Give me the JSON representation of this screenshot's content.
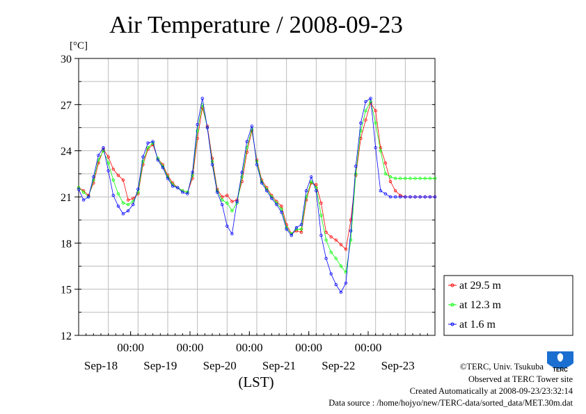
{
  "chart_data": {
    "type": "line",
    "title": "Air Temperature / 2008-09-23",
    "ylabel": "[°C]",
    "xlabel": "(LST)",
    "ylim": [
      12,
      30
    ],
    "xlim": [
      0,
      144
    ],
    "yticks": [
      "12",
      "15",
      "18",
      "21",
      "24",
      "27",
      "30"
    ],
    "xticks_time": [
      "00:00",
      "00:00",
      "00:00",
      "00:00",
      "00:00"
    ],
    "xticks_date": [
      "Sep-18",
      "Sep-19",
      "Sep-20",
      "Sep-21",
      "Sep-22",
      "Sep-23"
    ],
    "grid": true,
    "legend_position": "bottom-right, outside plot",
    "x_note": "x is hours elapsed in the plotted 6-day window (LST)",
    "series": [
      {
        "name": "at 29.5 m",
        "color": "#ff0000",
        "x": [
          0,
          2,
          4,
          6,
          8,
          10,
          12,
          14,
          16,
          18,
          20,
          22,
          24,
          26,
          28,
          30,
          32,
          34,
          36,
          38,
          40,
          42,
          44,
          46,
          48,
          50,
          52,
          54,
          56,
          58,
          60,
          62,
          64,
          66,
          68,
          70,
          72,
          74,
          76,
          78,
          80,
          82,
          84,
          86,
          88,
          90,
          92,
          94,
          96,
          98,
          100,
          102,
          104,
          106,
          108,
          110,
          112,
          114,
          116,
          118,
          120,
          122,
          124,
          126,
          128,
          130,
          132,
          134,
          136,
          138,
          140,
          142,
          144
        ],
        "values": [
          21.6,
          21.4,
          21.1,
          21.9,
          23.2,
          24.1,
          23.6,
          22.8,
          22.4,
          22.1,
          20.8,
          20.9,
          21.2,
          23.1,
          24.1,
          24.4,
          23.5,
          23.1,
          22.4,
          21.9,
          21.6,
          21.4,
          21.3,
          22.2,
          24.8,
          26.8,
          25.6,
          23.5,
          21.5,
          21.0,
          21.1,
          20.7,
          20.8,
          22.0,
          23.9,
          25.3,
          23.4,
          22.1,
          21.6,
          21.1,
          20.7,
          20.4,
          19.2,
          18.6,
          18.8,
          18.7,
          20.8,
          21.9,
          21.8,
          20.6,
          18.7,
          18.4,
          18.2,
          17.9,
          17.6,
          19.5,
          22.4,
          24.8,
          26.0,
          27.1,
          26.6,
          24.2,
          23.2,
          22.0,
          21.4,
          21.1,
          21.0,
          21.0,
          21.0,
          21.0,
          21.0,
          21.0,
          21.0
        ]
      },
      {
        "name": "at 12.3 m",
        "color": "#00ff00",
        "x": [
          0,
          2,
          4,
          6,
          8,
          10,
          12,
          14,
          16,
          18,
          20,
          22,
          24,
          26,
          28,
          30,
          32,
          34,
          36,
          38,
          40,
          42,
          44,
          46,
          48,
          50,
          52,
          54,
          56,
          58,
          60,
          62,
          64,
          66,
          68,
          70,
          72,
          74,
          76,
          78,
          80,
          82,
          84,
          86,
          88,
          90,
          92,
          94,
          96,
          98,
          100,
          102,
          104,
          106,
          108,
          110,
          112,
          114,
          116,
          118,
          120,
          122,
          124,
          126,
          128,
          130,
          132,
          134,
          136,
          138,
          140,
          142,
          144
        ],
        "values": [
          21.6,
          21.3,
          21.0,
          22.1,
          23.4,
          24.0,
          23.2,
          22.1,
          21.2,
          20.6,
          20.5,
          20.7,
          21.3,
          23.3,
          24.2,
          24.5,
          23.5,
          23.0,
          22.3,
          21.8,
          21.6,
          21.4,
          21.3,
          22.4,
          25.3,
          27.0,
          25.5,
          23.3,
          21.4,
          20.8,
          20.6,
          20.1,
          20.6,
          22.3,
          24.2,
          25.4,
          23.3,
          22.0,
          21.5,
          21.0,
          20.6,
          20.2,
          19.0,
          18.6,
          18.9,
          18.9,
          21.0,
          22.0,
          21.6,
          19.8,
          18.2,
          17.4,
          17.0,
          16.5,
          16.1,
          18.2,
          22.5,
          25.3,
          26.6,
          27.2,
          25.8,
          24.0,
          22.5,
          22.3,
          22.2,
          22.2,
          22.2,
          22.2,
          22.2,
          22.2,
          22.2,
          22.2,
          22.2
        ]
      },
      {
        "name": "at 1.6 m",
        "color": "#0000ff",
        "x": [
          0,
          2,
          4,
          6,
          8,
          10,
          12,
          14,
          16,
          18,
          20,
          22,
          24,
          26,
          28,
          30,
          32,
          34,
          36,
          38,
          40,
          42,
          44,
          46,
          48,
          50,
          52,
          54,
          56,
          58,
          60,
          62,
          64,
          66,
          68,
          70,
          72,
          74,
          76,
          78,
          80,
          82,
          84,
          86,
          88,
          90,
          92,
          94,
          96,
          98,
          100,
          102,
          104,
          106,
          108,
          110,
          112,
          114,
          116,
          118,
          120,
          122,
          124,
          126,
          128,
          130,
          132,
          134,
          136,
          138,
          140,
          142,
          144
        ],
        "values": [
          21.5,
          20.8,
          21.0,
          22.3,
          23.7,
          24.2,
          22.7,
          21.1,
          20.4,
          19.9,
          20.1,
          20.5,
          21.5,
          23.6,
          24.5,
          24.6,
          23.4,
          22.9,
          22.2,
          21.7,
          21.6,
          21.3,
          21.2,
          22.6,
          25.7,
          27.4,
          25.5,
          23.1,
          21.3,
          20.5,
          19.1,
          18.6,
          20.7,
          22.6,
          24.6,
          25.6,
          23.1,
          21.9,
          21.4,
          20.9,
          20.5,
          20.0,
          18.9,
          18.5,
          19.0,
          19.2,
          21.4,
          22.3,
          21.4,
          18.5,
          17.0,
          16.0,
          15.3,
          14.8,
          15.4,
          18.8,
          23.0,
          25.8,
          27.2,
          27.4,
          24.2,
          21.4,
          21.2,
          21.0,
          21.0,
          21.0,
          21.0,
          21.0,
          21.0,
          21.0,
          21.0,
          21.0,
          21.0
        ]
      }
    ],
    "legend": [
      "at 29.5 m",
      "at 12.3 m",
      "at 1.6 m"
    ]
  },
  "footer": {
    "copyright": "©TERC, Univ. Tsukuba",
    "observed": "Observed at TERC Tower site",
    "created": "Created Automatically at 2008-09-23/23:32:14",
    "source": "Data source : /home/hojyo/new/TERC-data/sorted_data/MET.30m.dat",
    "logo_text": "TERC"
  }
}
